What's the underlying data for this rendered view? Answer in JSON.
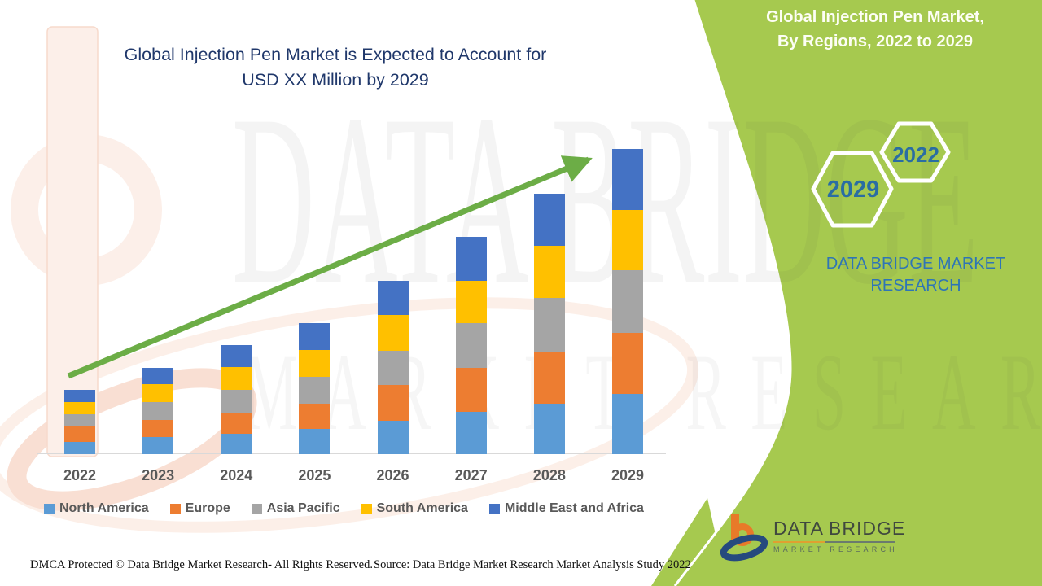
{
  "main_title": {
    "line1": "Global Injection Pen Market is Expected to Account for",
    "line2": "USD XX Million by 2029",
    "color": "#20386B"
  },
  "side_panel": {
    "background_color": "#A6C94F",
    "title_line1": "Global Injection Pen Market,",
    "title_line2": "By Regions, 2022 to 2029",
    "hexagons": {
      "front_label": "2029",
      "back_label": "2022"
    },
    "brand_line1": "DATA BRIDGE MARKET",
    "brand_line2": "RESEARCH",
    "brand_color": "#2E75B6"
  },
  "watermark": {
    "big_text": "DATA BRIDGE",
    "sub_text": "MARKET RESEARCH"
  },
  "footer_logo": {
    "title": "DATA BRIDGE",
    "subtitle": "MARKET RESEARCH"
  },
  "footer": {
    "dmca": "DMCA Protected © Data Bridge Market Research- All Rights Reserved.",
    "source": "Source: Data Bridge Market Research Market Analysis Study 2022"
  },
  "chart_data": {
    "type": "bar",
    "stacked": true,
    "title": "Global Injection Pen Market is Expected to Account for USD XX Million by 2029",
    "xlabel": "",
    "ylabel": "",
    "value_units": "relative units (y-axis unlabeled; magnitude masked as USD XX Million)",
    "categories": [
      "2022",
      "2023",
      "2024",
      "2025",
      "2026",
      "2027",
      "2028",
      "2029"
    ],
    "series": [
      {
        "name": "North America",
        "color": "#5B9BD5",
        "values": [
          15,
          21,
          25,
          31,
          41,
          52,
          62,
          74
        ]
      },
      {
        "name": "Europe",
        "color": "#ED7D31",
        "values": [
          19,
          21,
          26,
          31,
          44,
          54,
          64,
          75
        ]
      },
      {
        "name": "Asia Pacific",
        "color": "#A5A5A5",
        "values": [
          15,
          22,
          28,
          33,
          42,
          55,
          66,
          77
        ]
      },
      {
        "name": "South America",
        "color": "#FFC000",
        "values": [
          15,
          22,
          28,
          33,
          44,
          52,
          64,
          74
        ]
      },
      {
        "name": "Middle East and Africa",
        "color": "#4472C4",
        "values": [
          15,
          20,
          27,
          33,
          42,
          54,
          64,
          75
        ]
      }
    ],
    "stack_totals": [
      79,
      106,
      134,
      161,
      213,
      267,
      320,
      375
    ],
    "legend_position": "bottom",
    "grid": false,
    "trend_arrow": true,
    "trend_arrow_color": "#6CAD46",
    "axis_line_color": "#D9D9D9",
    "label_color": "#595959"
  }
}
